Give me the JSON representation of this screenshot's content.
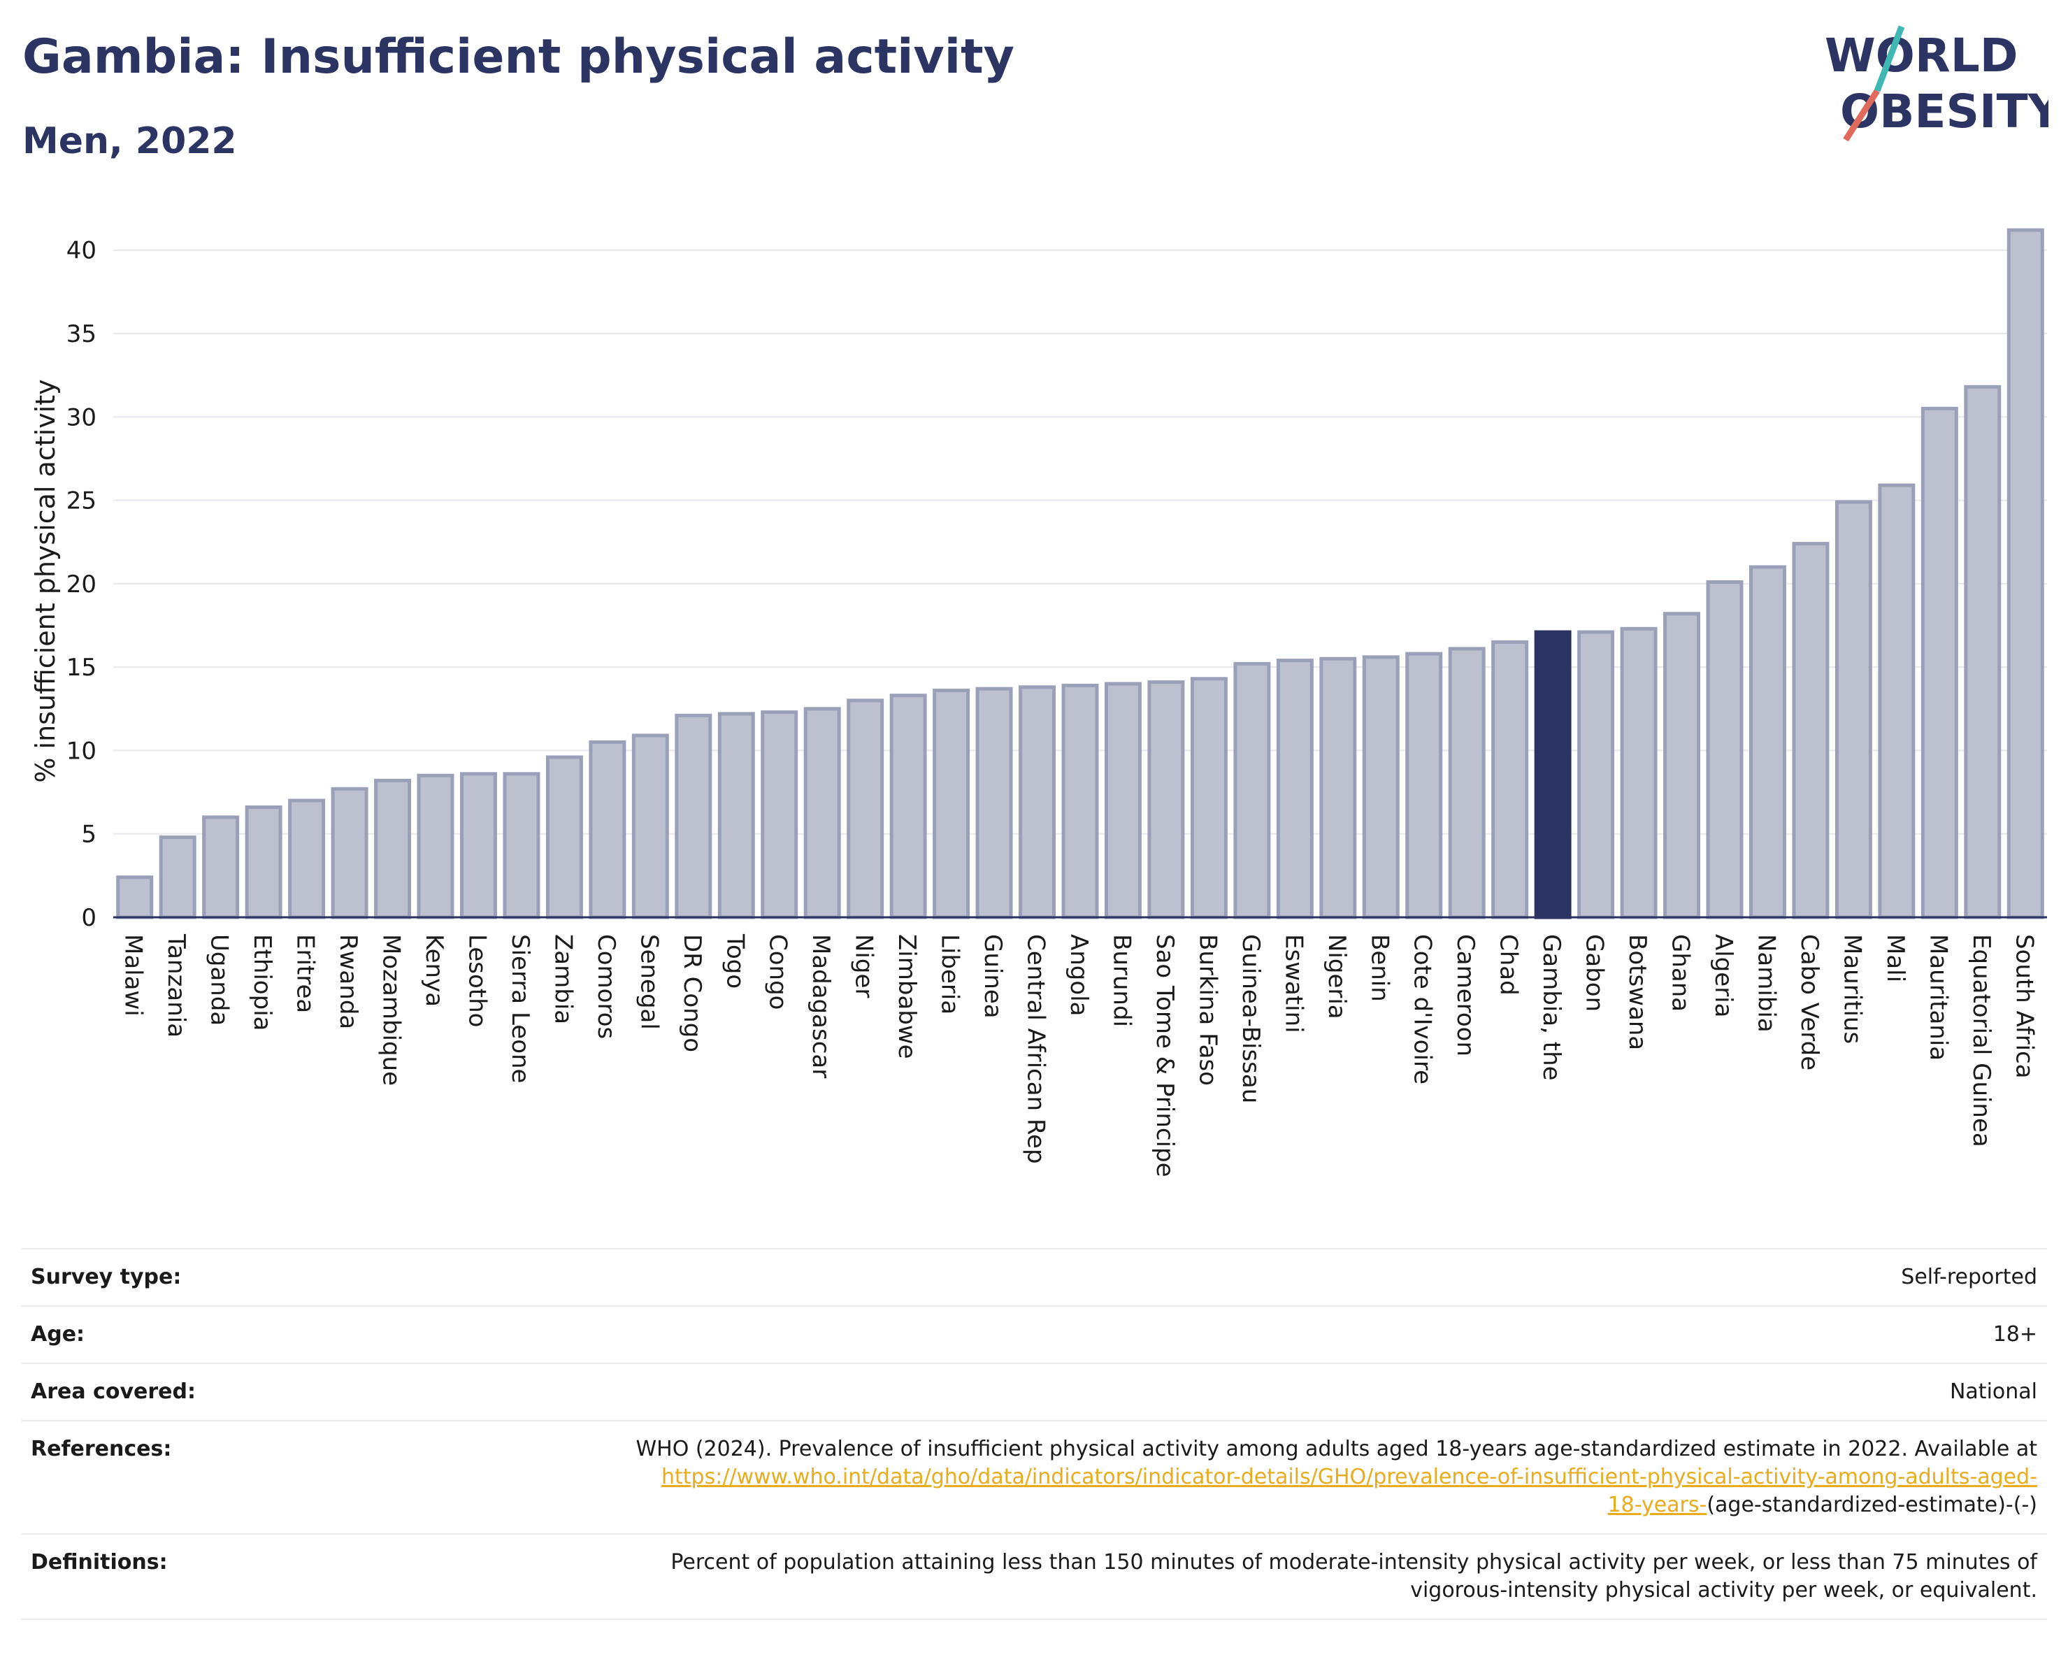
{
  "header": {
    "title": "Gambia: Insufficient physical activity",
    "subtitle": "Men, 2022"
  },
  "logo": {
    "line1": "WORLD",
    "line2": "OBESITY"
  },
  "colors": {
    "highlight": "#2b3462",
    "bar_fill": "#bcc0cf",
    "bar_stroke": "#9aa0b8",
    "link": "#e8ac1c",
    "logo_teal": "#3fb8b3",
    "logo_red": "#e06b5c"
  },
  "chart_data": {
    "type": "bar",
    "title": "",
    "ylabel": "% insufficient physical activity",
    "xlabel": "",
    "ylim": [
      0,
      42
    ],
    "yticks": [
      0,
      5,
      10,
      15,
      20,
      25,
      30,
      35,
      40
    ],
    "grid": true,
    "highlight": "Gambia, the",
    "categories": [
      "Malawi",
      "Tanzania",
      "Uganda",
      "Ethiopia",
      "Eritrea",
      "Rwanda",
      "Mozambique",
      "Kenya",
      "Lesotho",
      "Sierra Leone",
      "Zambia",
      "Comoros",
      "Senegal",
      "DR Congo",
      "Togo",
      "Congo",
      "Madagascar",
      "Niger",
      "Zimbabwe",
      "Liberia",
      "Guinea",
      "Central African Rep",
      "Angola",
      "Burundi",
      "Sao Tome & Principe",
      "Burkina Faso",
      "Guinea-Bissau",
      "Eswatini",
      "Nigeria",
      "Benin",
      "Cote d'Ivoire",
      "Cameroon",
      "Chad",
      "Gambia, the",
      "Gabon",
      "Botswana",
      "Ghana",
      "Algeria",
      "Namibia",
      "Cabo Verde",
      "Mauritius",
      "Mali",
      "Mauritania",
      "Equatorial Guinea",
      "South Africa"
    ],
    "values": [
      2.4,
      4.8,
      6.0,
      6.6,
      7.0,
      7.7,
      8.2,
      8.5,
      8.6,
      8.6,
      9.6,
      10.5,
      10.9,
      12.1,
      12.2,
      12.3,
      12.5,
      13.0,
      13.3,
      13.6,
      13.7,
      13.8,
      13.9,
      14.0,
      14.1,
      14.3,
      15.2,
      15.4,
      15.5,
      15.6,
      15.8,
      16.1,
      16.5,
      17.1,
      17.1,
      17.3,
      18.2,
      20.1,
      21.0,
      22.4,
      24.9,
      25.9,
      30.5,
      31.8,
      41.2
    ]
  },
  "info": [
    {
      "label": "Survey type:",
      "value": "Self-reported"
    },
    {
      "label": "Age:",
      "value": "18+"
    },
    {
      "label": "Area covered:",
      "value": "National"
    }
  ],
  "references": {
    "label": "References:",
    "text": "WHO (2024). Prevalence of insufficient physical activity among adults aged 18-years age-standardized estimate in 2022. Available at",
    "link_line1": "https://www.who.int/data/gho/data/indicators/indicator-details/GHO/prevalence-of-insufficient-physical-activity-among-adults-aged-",
    "link_line2": "18-years-",
    "suffix": "(age-standardized-estimate)-(-)"
  },
  "definitions": {
    "label": "Definitions:",
    "line1": "Percent of population attaining less than 150 minutes of moderate-intensity physical activity per week, or less than 75 minutes of",
    "line2": "vigorous-intensity physical activity per week, or equivalent."
  }
}
